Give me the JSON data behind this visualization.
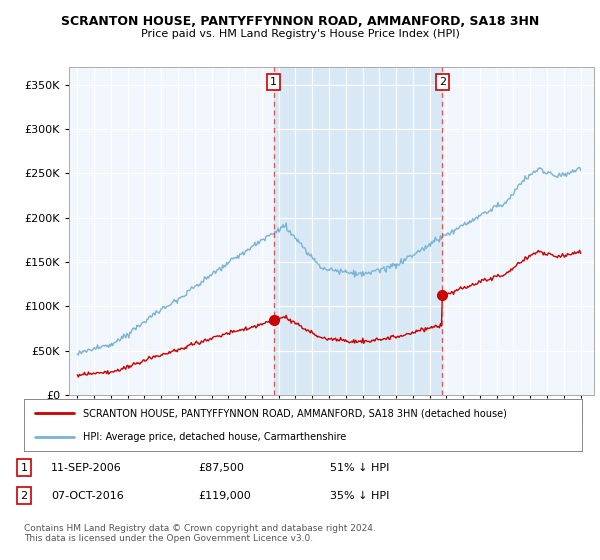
{
  "title": "SCRANTON HOUSE, PANTYFFYNNON ROAD, AMMANFORD, SA18 3HN",
  "subtitle": "Price paid vs. HM Land Registry's House Price Index (HPI)",
  "legend_line1": "SCRANTON HOUSE, PANTYFFYNNON ROAD, AMMANFORD, SA18 3HN (detached house)",
  "legend_line2": "HPI: Average price, detached house, Carmarthenshire",
  "sale1_date": "11-SEP-2006",
  "sale1_price": "£87,500",
  "sale1_pct": "51% ↓ HPI",
  "sale2_date": "07-OCT-2016",
  "sale2_price": "£119,000",
  "sale2_pct": "35% ↓ HPI",
  "footer": "Contains HM Land Registry data © Crown copyright and database right 2024.\nThis data is licensed under the Open Government Licence v3.0.",
  "ylim": [
    0,
    370000
  ],
  "yticks": [
    0,
    50000,
    100000,
    150000,
    200000,
    250000,
    300000,
    350000
  ],
  "hpi_color": "#7ab3d4",
  "price_color": "#cc0000",
  "vline_color": "#dd4444",
  "shade_color": "#d8e8f4",
  "background_color": "#ffffff",
  "plot_bg": "#f0f6fb",
  "sale1_year": 2006.708,
  "sale2_year": 2016.75,
  "sale1_price_val": 87500,
  "sale2_price_val": 119000
}
